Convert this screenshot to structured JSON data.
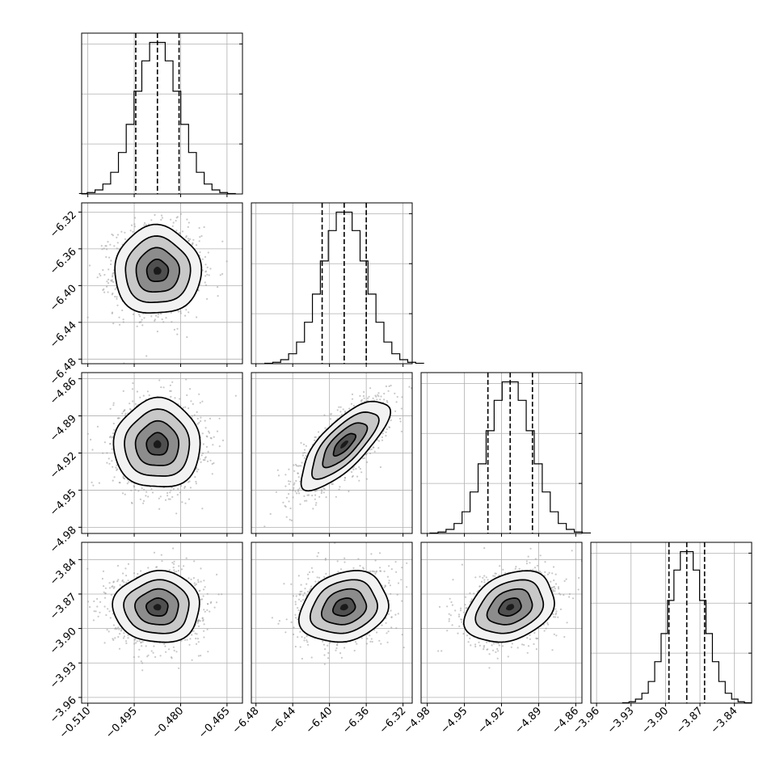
{
  "chart_data": {
    "type": "scatter",
    "layout": "corner",
    "grid": true,
    "dimensions": [
      {
        "index": 0,
        "range": [
          -0.512,
          -0.46
        ],
        "ticks": [
          -0.51,
          -0.495,
          -0.48,
          -0.465
        ],
        "tick_labels": [
          "−0.510",
          "−0.495",
          "−0.480",
          "−0.465"
        ],
        "mean": -0.4875,
        "sigma": 0.007,
        "quantiles": [
          -0.4945,
          -0.4875,
          -0.4805
        ]
      },
      {
        "index": 1,
        "range": [
          -6.485,
          -6.31
        ],
        "ticks": [
          -6.48,
          -6.44,
          -6.4,
          -6.36,
          -6.32
        ],
        "tick_labels": [
          "−6.48",
          "−6.44",
          "−6.40",
          "−6.36",
          "−6.32"
        ],
        "mean": -6.384,
        "sigma": 0.024,
        "quantiles": [
          -6.408,
          -6.384,
          -6.36
        ]
      },
      {
        "index": 2,
        "range": [
          -4.985,
          -4.855
        ],
        "ticks": [
          -4.98,
          -4.95,
          -4.92,
          -4.89,
          -4.86
        ],
        "tick_labels": [
          "−4.98",
          "−4.95",
          "−4.92",
          "−4.89",
          "−4.86"
        ],
        "mean": -4.913,
        "sigma": 0.018,
        "quantiles": [
          -4.931,
          -4.913,
          -4.895
        ]
      },
      {
        "index": 3,
        "range": [
          -3.965,
          -3.825
        ],
        "ticks": [
          -3.96,
          -3.93,
          -3.9,
          -3.87,
          -3.84
        ],
        "tick_labels": [
          "−3.96",
          "−3.93",
          "−3.90",
          "−3.87",
          "−3.84"
        ],
        "mean": -3.8815,
        "sigma": 0.0155,
        "quantiles": [
          -3.897,
          -3.8815,
          -3.866
        ]
      }
    ],
    "correlations": [
      {
        "pair": [
          1,
          0
        ],
        "rho": 0.0
      },
      {
        "pair": [
          2,
          0
        ],
        "rho": 0.0
      },
      {
        "pair": [
          2,
          1
        ],
        "rho": 0.75
      },
      {
        "pair": [
          3,
          0
        ],
        "rho": 0.0
      },
      {
        "pair": [
          3,
          1
        ],
        "rho": 0.2
      },
      {
        "pair": [
          3,
          2
        ],
        "rho": 0.3
      }
    ],
    "contour_levels_sigma": [
      0.5,
      1.0,
      1.5,
      2.0
    ],
    "histogram_bins": 20,
    "colors": {
      "line": "#000000",
      "scatter": "#9a9a9a",
      "grid": "#b0b0b0",
      "density": [
        "#f2f2f2",
        "#c8c8c8",
        "#8c8c8c",
        "#505050",
        "#1a1a1a"
      ]
    }
  }
}
